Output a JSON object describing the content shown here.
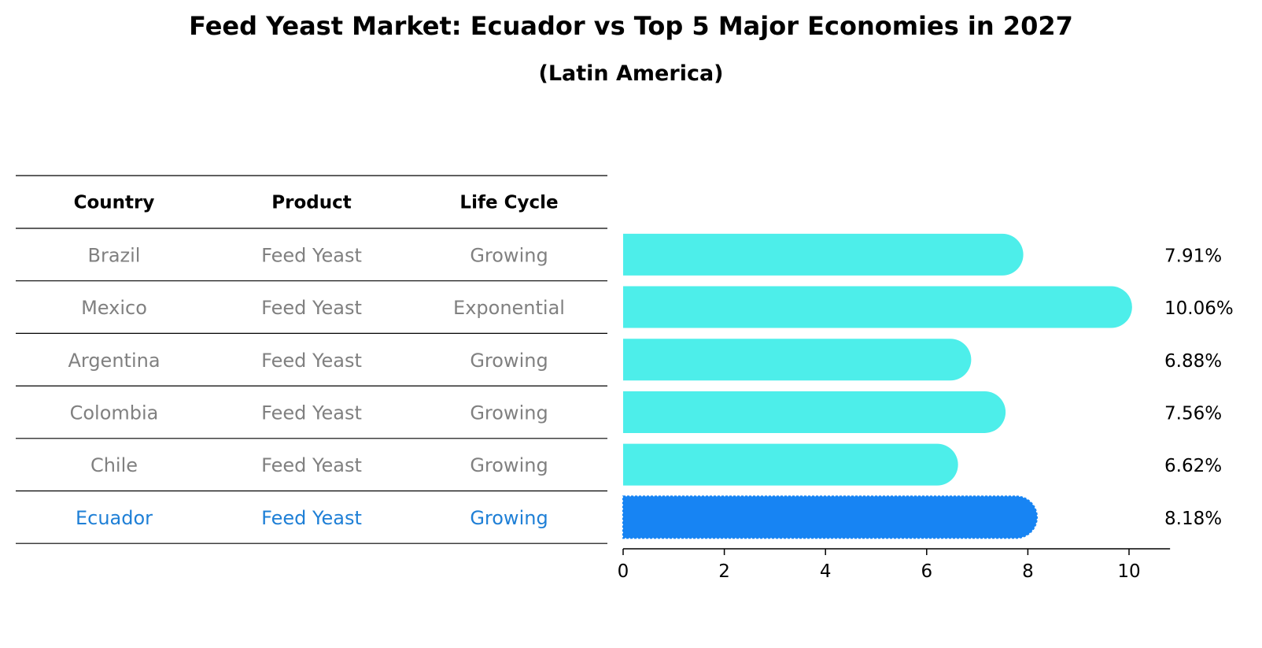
{
  "title": "Feed Yeast Market: Ecuador vs Top 5 Major Economies in 2027",
  "subtitle": "(Latin America)",
  "table": {
    "headers": [
      "Country",
      "Product",
      "Life Cycle"
    ],
    "rows": [
      {
        "country": "Brazil",
        "product": "Feed Yeast",
        "life_cycle": "Growing",
        "highlight": false
      },
      {
        "country": "Mexico",
        "product": "Feed Yeast",
        "life_cycle": "Exponential",
        "highlight": false
      },
      {
        "country": "Argentina",
        "product": "Feed Yeast",
        "life_cycle": "Growing",
        "highlight": false
      },
      {
        "country": "Colombia",
        "product": "Feed Yeast",
        "life_cycle": "Growing",
        "highlight": false
      },
      {
        "country": "Chile",
        "product": "Feed Yeast",
        "life_cycle": "Growing",
        "highlight": false
      },
      {
        "country": "Ecuador",
        "product": "Feed Yeast",
        "life_cycle": "Growing",
        "highlight": true
      }
    ]
  },
  "colors": {
    "bar": "#4DEEEA",
    "highlight_bar": "#1784F3",
    "muted_text": "#808080",
    "highlight_text": "#1E7FD6",
    "text": "#000000",
    "line": "#000000"
  },
  "chart_data": {
    "type": "bar",
    "orientation": "horizontal",
    "title": "Feed Yeast Market: Ecuador vs Top 5 Major Economies in 2027",
    "subtitle": "(Latin America)",
    "categories": [
      "Brazil",
      "Mexico",
      "Argentina",
      "Colombia",
      "Chile",
      "Ecuador"
    ],
    "values": [
      7.91,
      10.06,
      6.88,
      7.56,
      6.62,
      8.18
    ],
    "value_labels": [
      "7.91%",
      "10.06%",
      "6.88%",
      "7.56%",
      "6.62%",
      "8.18%"
    ],
    "highlight_category": "Ecuador",
    "xlim": [
      0,
      10.5
    ],
    "xticks": [
      0,
      2,
      4,
      6,
      8,
      10
    ],
    "xlabel": "",
    "ylabel": "",
    "grid": false,
    "legend": "none"
  }
}
